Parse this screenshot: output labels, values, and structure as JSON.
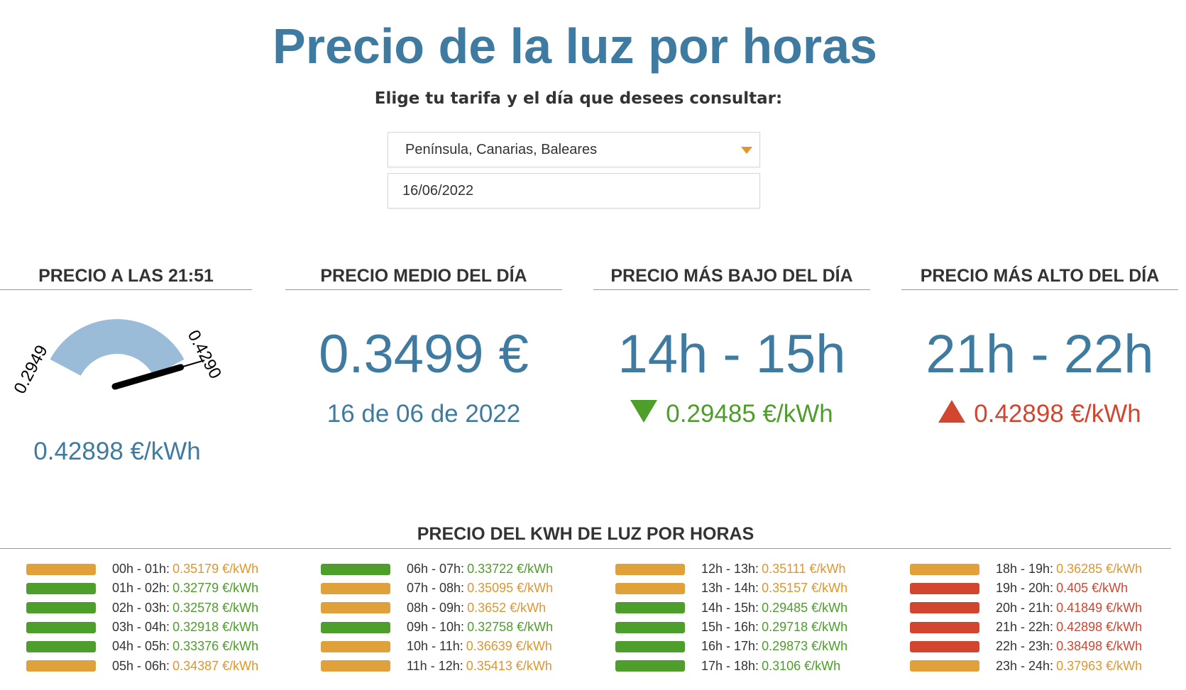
{
  "header": {
    "title": "Precio de la luz por horas",
    "subtitle": "Elige tu tarifa y el día que desees consultar:"
  },
  "form": {
    "tarifa_selected": "Península, Canarias, Baleares",
    "date_value": "16/06/2022"
  },
  "cards": {
    "now": {
      "title": "PRECIO A LAS 21:51",
      "gauge_min": "0.2949",
      "gauge_max": "0.4290",
      "gauge_value": 0.42898,
      "value_text": "0.42898 €/kWh"
    },
    "average": {
      "title": "PRECIO MEDIO DEL DÍA",
      "value": "0.3499 €",
      "date": "16 de 06 de 2022"
    },
    "lowest": {
      "title": "PRECIO MÁS BAJO DEL DÍA",
      "range": "14h - 15h",
      "price": "0.29485 €/kWh"
    },
    "highest": {
      "title": "PRECIO MÁS ALTO DEL DÍA",
      "range": "21h - 22h",
      "price": "0.42898 €/kWh"
    }
  },
  "hourly": {
    "title": "PRECIO DEL KWH DE LUZ POR HORAS",
    "colors": {
      "green": "#4d9e2a",
      "orange": "#e0962f",
      "red": "#d2452f"
    },
    "columns": [
      [
        {
          "label": "00h - 01h:",
          "price": "0.35179 €/kWh",
          "level": "orange"
        },
        {
          "label": "01h - 02h:",
          "price": "0.32779 €/kWh",
          "level": "green"
        },
        {
          "label": "02h - 03h:",
          "price": "0.32578 €/kWh",
          "level": "green"
        },
        {
          "label": "03h - 04h:",
          "price": "0.32918 €/kWh",
          "level": "green"
        },
        {
          "label": "04h - 05h:",
          "price": "0.33376 €/kWh",
          "level": "green"
        },
        {
          "label": "05h - 06h:",
          "price": "0.34387 €/kWh",
          "level": "orange"
        }
      ],
      [
        {
          "label": "06h - 07h:",
          "price": "0.33722 €/kWh",
          "level": "green"
        },
        {
          "label": "07h - 08h:",
          "price": "0.35095 €/kWh",
          "level": "orange"
        },
        {
          "label": "08h - 09h:",
          "price": "0.3652 €/kWh",
          "level": "orange"
        },
        {
          "label": "09h - 10h:",
          "price": "0.32758 €/kWh",
          "level": "green"
        },
        {
          "label": "10h - 11h:",
          "price": "0.36639 €/kWh",
          "level": "orange"
        },
        {
          "label": "11h - 12h:",
          "price": "0.35413 €/kWh",
          "level": "orange"
        }
      ],
      [
        {
          "label": "12h - 13h:",
          "price": "0.35111 €/kWh",
          "level": "orange"
        },
        {
          "label": "13h - 14h:",
          "price": "0.35157 €/kWh",
          "level": "orange"
        },
        {
          "label": "14h - 15h:",
          "price": "0.29485 €/kWh",
          "level": "green"
        },
        {
          "label": "15h - 16h:",
          "price": "0.29718 €/kWh",
          "level": "green"
        },
        {
          "label": "16h - 17h:",
          "price": "0.29873 €/kWh",
          "level": "green"
        },
        {
          "label": "17h - 18h:",
          "price": "0.3106 €/kWh",
          "level": "green"
        }
      ],
      [
        {
          "label": "18h - 19h:",
          "price": "0.36285 €/kWh",
          "level": "orange"
        },
        {
          "label": "19h - 20h:",
          "price": "0.405 €/kWh",
          "level": "red"
        },
        {
          "label": "20h - 21h:",
          "price": "0.41849 €/kWh",
          "level": "red"
        },
        {
          "label": "21h - 22h:",
          "price": "0.42898 €/kWh",
          "level": "red"
        },
        {
          "label": "22h - 23h:",
          "price": "0.38498 €/kWh",
          "level": "red"
        },
        {
          "label": "23h - 24h:",
          "price": "0.37963 €/kWh",
          "level": "orange"
        }
      ]
    ]
  }
}
